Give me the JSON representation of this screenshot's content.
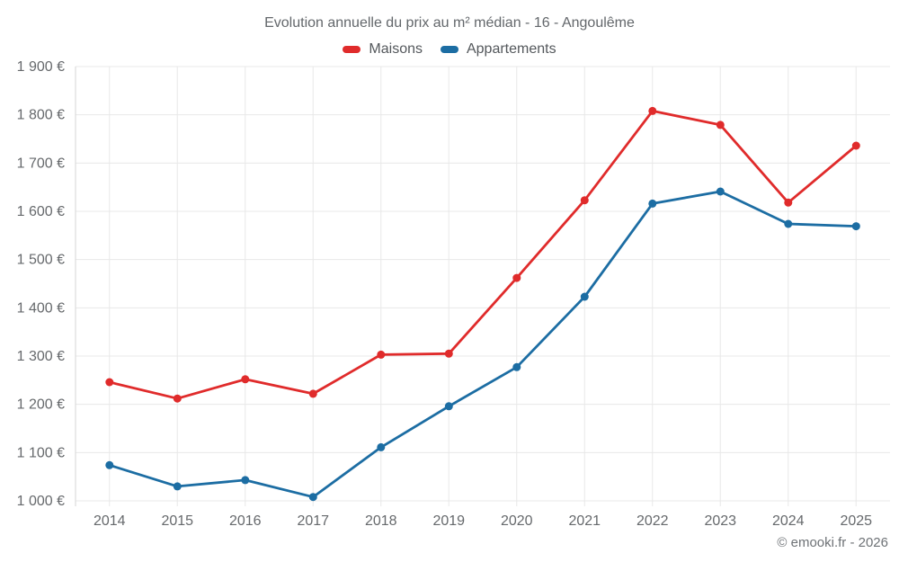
{
  "chart_data": {
    "type": "line",
    "title": "Evolution annuelle du prix au m² médian - 16 - Angoulême",
    "categories": [
      "2014",
      "2015",
      "2016",
      "2017",
      "2018",
      "2019",
      "2020",
      "2021",
      "2022",
      "2023",
      "2024",
      "2025"
    ],
    "series": [
      {
        "name": "Maisons",
        "color": "#e02b2b",
        "values": [
          1246,
          1212,
          1252,
          1222,
          1303,
          1305,
          1462,
          1623,
          1808,
          1779,
          1618,
          1736
        ]
      },
      {
        "name": "Appartements",
        "color": "#1c6da3",
        "values": [
          1074,
          1030,
          1043,
          1008,
          1111,
          1196,
          1277,
          1423,
          1616,
          1641,
          1574,
          1569
        ]
      }
    ],
    "ylim": [
      1000,
      1900
    ],
    "ytick_step": 100,
    "ytick_labels": [
      "1 000 €",
      "1 100 €",
      "1 200 €",
      "1 300 €",
      "1 400 €",
      "1 500 €",
      "1 600 €",
      "1 700 €",
      "1 800 €",
      "1 900 €"
    ],
    "xlabel": "",
    "ylabel": "",
    "grid": true,
    "legend_position": "top",
    "marker": "circle"
  },
  "styles": {
    "grid_color": "#e8e8e8",
    "axis_color": "#d6d6d6",
    "tick_text_color": "#66696c",
    "title_color": "#63676b",
    "legend_text_color": "#54585c",
    "footer_text_color": "#6e7276"
  },
  "footer": {
    "credit": "© emooki.fr - 2026"
  }
}
